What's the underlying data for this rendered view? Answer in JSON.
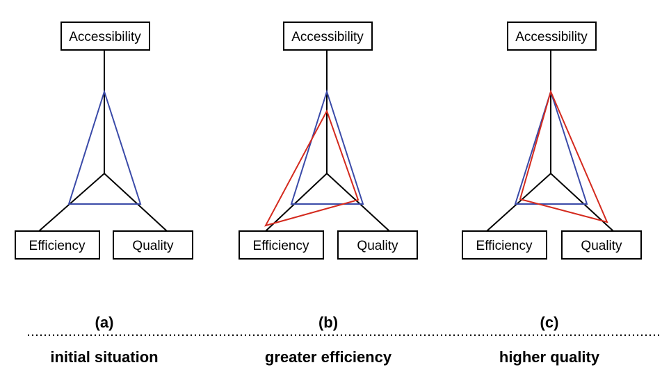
{
  "axes": {
    "top": "Accessibility",
    "left": "Efficiency",
    "right": "Quality"
  },
  "colors": {
    "initial": "#3a4aa8",
    "changed": "#d42a1e"
  },
  "panels": [
    {
      "letter": "(a)",
      "caption": "initial situation",
      "has_changed": false
    },
    {
      "letter": "(b)",
      "caption": "greater efficiency",
      "has_changed": true
    },
    {
      "letter": "(c)",
      "caption": "higher quality",
      "has_changed": true
    }
  ]
}
